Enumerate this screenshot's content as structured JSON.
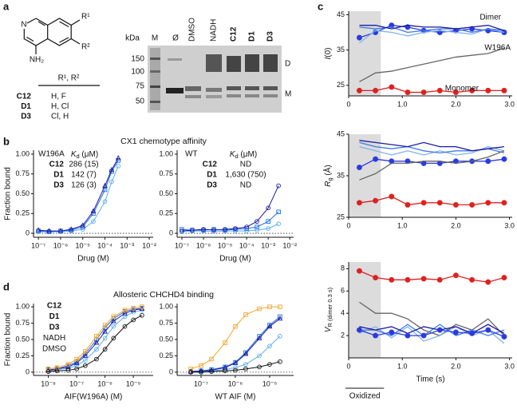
{
  "panel_labels": [
    "a",
    "b",
    "c",
    "d"
  ],
  "structure": {
    "n": "N",
    "nh2": "NH₂",
    "r1": "R¹",
    "r2": "R²",
    "header": "R¹, R²",
    "rows": [
      {
        "name": "C12",
        "value": "H, F",
        "color": "#5aaef0"
      },
      {
        "name": "D1",
        "value": "H, Cl",
        "color": "#1f6fe8"
      },
      {
        "name": "D3",
        "value": "Cl, H",
        "color": "#1a1aa6"
      }
    ]
  },
  "gel": {
    "kda": "kDa",
    "lanes": [
      "M",
      "Ø",
      "DMSO",
      "NADH",
      "C12",
      "D1",
      "D3"
    ],
    "markers": [
      "150",
      "100",
      "75",
      "50"
    ],
    "bands": [
      "D",
      "M"
    ]
  },
  "chart_data": [
    {
      "type": "line",
      "title": "CX1 chemotype affinity",
      "xlabel": "Drug (M)",
      "ylabel": "Fraction bound",
      "xlog": true,
      "zero_line": true,
      "legend_title": "W196A",
      "kd_header": {
        "main": "K",
        "sub": "d",
        "unit": " (μM)"
      },
      "x": [
        1e-07,
        3e-07,
        1e-06,
        3e-06,
        1e-05,
        3e-05,
        0.0001,
        0.0002,
        0.0004
      ],
      "xlim": [
        6e-08,
        0.015
      ],
      "ylim": [
        -0.05,
        1.05
      ],
      "xticks": [
        {
          "value": 1e-07,
          "label": "10⁻⁷"
        },
        {
          "value": 1e-06,
          "label": "10⁻⁶"
        },
        {
          "value": 1e-05,
          "label": "10⁻⁵"
        },
        {
          "value": 0.0001,
          "label": "10⁻⁴"
        },
        {
          "value": 0.001,
          "label": "10⁻³"
        },
        {
          "value": 0.01,
          "label": "10⁻²"
        }
      ],
      "yticks": [
        0,
        0.25,
        {
          "value": 0.5,
          "label": "0.50"
        },
        0.75,
        {
          "value": 1,
          "label": "1.00"
        }
      ],
      "series": [
        {
          "name": "C12",
          "kd": "286 (15)",
          "color": "#5aaef0",
          "marker": "circle",
          "values": [
            0.02,
            0.02,
            0.02,
            0.03,
            0.05,
            0.15,
            0.4,
            0.65,
            0.85
          ]
        },
        {
          "name": "D1",
          "kd": "142 (7)",
          "color": "#1f6fe8",
          "marker": "square",
          "values": [
            0.03,
            0.02,
            0.03,
            0.04,
            0.08,
            0.25,
            0.55,
            0.78,
            0.92
          ]
        },
        {
          "name": "D3",
          "kd": "126 (3)",
          "color": "#1a1aa6",
          "marker": "triangle",
          "values": [
            0.04,
            0.03,
            0.03,
            0.05,
            0.1,
            0.28,
            0.6,
            0.8,
            0.95
          ]
        }
      ]
    },
    {
      "type": "line",
      "xlabel": "Drug (M)",
      "xlog": true,
      "zero_line": true,
      "legend_title": "WT",
      "kd_header": {
        "main": "K",
        "sub": "d",
        "unit": " (μM)"
      },
      "x": [
        1e-07,
        3e-07,
        1e-06,
        3e-06,
        1e-05,
        3e-05,
        0.0001,
        0.0003,
        0.001,
        0.003
      ],
      "xlim": [
        6e-08,
        0.015
      ],
      "ylim": [
        -0.05,
        1.05
      ],
      "xticks": [
        {
          "value": 1e-07,
          "label": "10⁻⁷"
        },
        {
          "value": 1e-06,
          "label": "10⁻⁶"
        },
        {
          "value": 1e-05,
          "label": "10⁻⁵"
        },
        {
          "value": 0.0001,
          "label": "10⁻⁴"
        },
        {
          "value": 0.001,
          "label": "10⁻³"
        },
        {
          "value": 0.01,
          "label": "10⁻²"
        }
      ],
      "yticks": [
        0,
        0.25,
        {
          "value": 0.5,
          "label": "0.50"
        },
        0.75,
        {
          "value": 1,
          "label": "1.00"
        }
      ],
      "series": [
        {
          "name": "C12",
          "kd": "ND",
          "color": "#5aaef0",
          "marker": "circle",
          "values": [
            0.02,
            0.03,
            0.03,
            0.02,
            0.03,
            0.03,
            0.03,
            0.04,
            0.06,
            0.12
          ]
        },
        {
          "name": "D1",
          "kd": "1,630 (750)",
          "color": "#1f6fe8",
          "marker": "square",
          "values": [
            0.05,
            0.04,
            0.04,
            0.05,
            0.04,
            0.05,
            0.06,
            0.08,
            0.15,
            0.27
          ]
        },
        {
          "name": "D3",
          "kd": "ND",
          "color": "#1a1aa6",
          "marker": "circle",
          "values": [
            0.03,
            0.04,
            0.05,
            0.04,
            0.05,
            0.06,
            0.08,
            0.15,
            0.32,
            0.6
          ]
        }
      ]
    },
    {
      "type": "line",
      "title": "Allosteric CHCHD4 binding",
      "xlabel": "AIF(W196A) (M)",
      "ylabel": "Fraction bound",
      "xlog": true,
      "zero_line": true,
      "x": [
        1e-08,
        2e-08,
        5e-08,
        1e-07,
        2e-07,
        5e-07,
        1e-06,
        2e-06,
        5e-06,
        1e-05,
        2e-05
      ],
      "xlim": [
        3e-09,
        5e-05
      ],
      "ylim": [
        -0.05,
        1.05
      ],
      "xticks": [
        {
          "value": 1e-08,
          "label": "10⁻⁸"
        },
        {
          "value": 1e-07,
          "label": "10⁻⁷"
        },
        {
          "value": 1e-06,
          "label": "10⁻⁶"
        },
        {
          "value": 1e-05,
          "label": "10⁻⁵"
        }
      ],
      "yticks": [
        0,
        0.25,
        {
          "value": 0.5,
          "label": "0.50"
        },
        0.75,
        {
          "value": 1,
          "label": "1.00"
        }
      ],
      "series": [
        {
          "name": "C12",
          "bold": true,
          "color": "#5aaef0",
          "marker": "circle",
          "values": [
            0.02,
            0.04,
            0.06,
            0.1,
            0.18,
            0.35,
            0.52,
            0.7,
            0.85,
            0.92,
            0.95
          ]
        },
        {
          "name": "D1",
          "bold": true,
          "color": "#1f6fe8",
          "marker": "square",
          "values": [
            0.04,
            0.05,
            0.1,
            0.16,
            0.28,
            0.5,
            0.68,
            0.82,
            0.93,
            0.96,
            0.98
          ]
        },
        {
          "name": "D3",
          "bold": true,
          "color": "#1a1aa6",
          "marker": "triangle",
          "values": [
            0.03,
            0.05,
            0.08,
            0.14,
            0.25,
            0.45,
            0.62,
            0.78,
            0.9,
            0.95,
            0.97
          ]
        },
        {
          "name": "NADH",
          "color": "#f5a524",
          "marker": "square",
          "values": [
            0.05,
            0.07,
            0.12,
            0.2,
            0.32,
            0.55,
            0.72,
            0.85,
            0.95,
            0.98,
            1.0
          ]
        },
        {
          "name": "DMSO",
          "color": "#111111",
          "marker": "circle",
          "values": [
            0.01,
            0.02,
            0.03,
            0.05,
            0.1,
            0.2,
            0.35,
            0.52,
            0.7,
            0.8,
            0.87
          ]
        }
      ]
    },
    {
      "type": "line",
      "xlabel": "WT AIF (M)",
      "xlog": true,
      "zero_line": true,
      "x": [
        5e-08,
        1e-07,
        2e-07,
        5e-07,
        1e-06,
        2e-06,
        5e-06,
        1e-05,
        2e-05
      ],
      "xlim": [
        2e-08,
        5e-05
      ],
      "ylim": [
        -0.05,
        1.05
      ],
      "xticks": [
        {
          "value": 1e-07,
          "label": "10⁻⁷"
        },
        {
          "value": 1e-06,
          "label": "10⁻⁶"
        },
        {
          "value": 1e-05,
          "label": "10⁻⁵"
        }
      ],
      "yticks": [
        0,
        0.25,
        {
          "value": 0.5,
          "label": "0.50"
        },
        0.75,
        {
          "value": 1,
          "label": "1.00"
        }
      ],
      "series": [
        {
          "color": "#5aaef0",
          "marker": "circle",
          "values": [
            0.0,
            0.01,
            0.02,
            0.04,
            0.07,
            0.12,
            0.25,
            0.4,
            0.55
          ]
        },
        {
          "color": "#1f6fe8",
          "marker": "square",
          "values": [
            0.01,
            0.02,
            0.04,
            0.08,
            0.15,
            0.3,
            0.55,
            0.72,
            0.85
          ]
        },
        {
          "color": "#1a1aa6",
          "marker": "triangle",
          "values": [
            0.01,
            0.02,
            0.03,
            0.07,
            0.14,
            0.28,
            0.52,
            0.7,
            0.82
          ]
        },
        {
          "color": "#f5a524",
          "marker": "square",
          "values": [
            0.05,
            0.1,
            0.2,
            0.45,
            0.7,
            0.88,
            0.97,
            1.0,
            1.0
          ]
        },
        {
          "color": "#111111",
          "marker": "circle",
          "values": [
            0.0,
            0.0,
            0.01,
            0.02,
            0.03,
            0.05,
            0.08,
            0.12,
            0.16
          ]
        }
      ]
    },
    {
      "type": "line",
      "ylabel": {
        "main": "I",
        "unit": "(0)"
      },
      "shade": [
        0,
        0.6
      ],
      "x": [
        0.2,
        0.5,
        0.8,
        1.1,
        1.4,
        1.7,
        2.0,
        2.3,
        2.6,
        2.9
      ],
      "xlim": [
        0,
        3.05
      ],
      "ylim": [
        22,
        46
      ],
      "xticks": [
        0,
        {
          "value": 1,
          "label": "1.0"
        },
        {
          "value": 2,
          "label": "2.0"
        },
        {
          "value": 3,
          "label": "3.0"
        }
      ],
      "yticks": [
        25,
        35,
        45
      ],
      "series": [
        {
          "name": "Dimer",
          "color": "#2b3be0",
          "marker": "circle",
          "values": [
            38.5,
            40,
            42,
            41.5,
            40.5,
            40,
            40.5,
            41,
            40.5,
            40
          ]
        },
        {
          "color": "#7fb2f0",
          "values": [
            37,
            40.5,
            40,
            39,
            40,
            40.5,
            40,
            39.5,
            41,
            40
          ]
        },
        {
          "color": "#3e7be8",
          "values": [
            41.5,
            41,
            41.5,
            40,
            40.5,
            41,
            41,
            40,
            41,
            40.5
          ]
        },
        {
          "color": "#1b1b9e",
          "values": [
            42,
            42,
            41,
            42,
            41.5,
            41.5,
            41,
            41.5,
            42,
            40.5
          ]
        },
        {
          "name": "W196A",
          "color": "#666666",
          "values": [
            26,
            28.5,
            29,
            30,
            31,
            32,
            33,
            33.5,
            34,
            35.5
          ]
        },
        {
          "name": "Monomer",
          "color": "#e02020",
          "marker": "circle",
          "values": [
            23.5,
            23.5,
            24.5,
            23,
            23,
            23.5,
            23,
            23.5,
            23.5,
            23.5
          ]
        }
      ]
    },
    {
      "type": "line",
      "ylabel": {
        "main": "R",
        "sub": "g",
        "unit": " (Å)"
      },
      "shade": [
        0,
        0.6
      ],
      "x": [
        0.2,
        0.5,
        0.8,
        1.1,
        1.4,
        1.7,
        2.0,
        2.3,
        2.6,
        2.9
      ],
      "xlim": [
        0,
        3.05
      ],
      "ylim": [
        25,
        45
      ],
      "xticks": [
        0,
        {
          "value": 1,
          "label": "1.0"
        },
        {
          "value": 2,
          "label": "2.0"
        },
        {
          "value": 3,
          "label": "3.0"
        }
      ],
      "yticks": [
        25,
        35,
        45
      ],
      "series": [
        {
          "color": "#2b3be0",
          "marker": "circle",
          "values": [
            37,
            39,
            38.5,
            38.5,
            38,
            38,
            38.5,
            38.5,
            38.5,
            39
          ]
        },
        {
          "color": "#7fb2f0",
          "values": [
            42,
            41,
            40,
            41,
            40,
            41,
            40,
            40.5,
            42,
            41
          ]
        },
        {
          "color": "#3e7be8",
          "values": [
            43,
            42,
            41.5,
            42,
            41,
            40.5,
            41,
            41,
            41.5,
            40.5
          ]
        },
        {
          "color": "#1b1b9e",
          "values": [
            43.5,
            43,
            42.5,
            42,
            43,
            42,
            42,
            41,
            41.5,
            42
          ]
        },
        {
          "color": "#666666",
          "values": [
            34,
            35.5,
            38,
            38,
            38.5,
            38.5,
            38,
            38.5,
            39.5,
            41
          ]
        },
        {
          "color": "#e02020",
          "marker": "circle",
          "values": [
            28.5,
            29,
            30,
            28,
            28.5,
            28.5,
            28,
            28,
            28.5,
            28.5
          ]
        }
      ]
    },
    {
      "type": "line",
      "ylabel": {
        "main": "V",
        "sub": "R (dimer 0.3 s)"
      },
      "xlabel": "Time (s)",
      "shade": [
        0,
        0.6
      ],
      "shade_label": "Oxidized",
      "x": [
        0.2,
        0.5,
        0.8,
        1.1,
        1.4,
        1.7,
        2.0,
        2.3,
        2.6,
        2.9
      ],
      "xlim": [
        0,
        3.05
      ],
      "ylim": [
        0,
        8.6
      ],
      "xticks": [
        0,
        {
          "value": 1,
          "label": "1.0"
        },
        {
          "value": 2,
          "label": "2.0"
        },
        {
          "value": 3,
          "label": "3.0"
        }
      ],
      "yticks": [
        2,
        4,
        6,
        8
      ],
      "series": [
        {
          "color": "#e02020",
          "marker": "circle",
          "values": [
            7.8,
            7.2,
            7.0,
            7.0,
            7.1,
            7.0,
            7.4,
            7.0,
            6.8,
            7.2
          ]
        },
        {
          "color": "#666666",
          "values": [
            5,
            4.0,
            4.0,
            3.5,
            2.5,
            2.0,
            3.0,
            2.5,
            3.5,
            2.0
          ]
        },
        {
          "color": "#7fb2f0",
          "values": [
            2.2,
            2.8,
            1.8,
            2.8,
            1.5,
            2.0,
            2.8,
            2.0,
            2.5,
            1.3
          ]
        },
        {
          "color": "#3e7be8",
          "values": [
            2.5,
            2.5,
            2.0,
            3.0,
            2.0,
            3.0,
            2.0,
            2.5,
            2.0,
            2.5
          ]
        },
        {
          "color": "#1b1b9e",
          "values": [
            2.8,
            2.5,
            2.8,
            2.2,
            2.8,
            2.5,
            2.8,
            2.2,
            3.0,
            2.2
          ]
        },
        {
          "color": "#2b3be0",
          "marker": "circle",
          "values": [
            2.5,
            2.0,
            2.3,
            2.0,
            2.0,
            2.5,
            2.3,
            2.2,
            2.5,
            1.9
          ]
        }
      ]
    }
  ]
}
